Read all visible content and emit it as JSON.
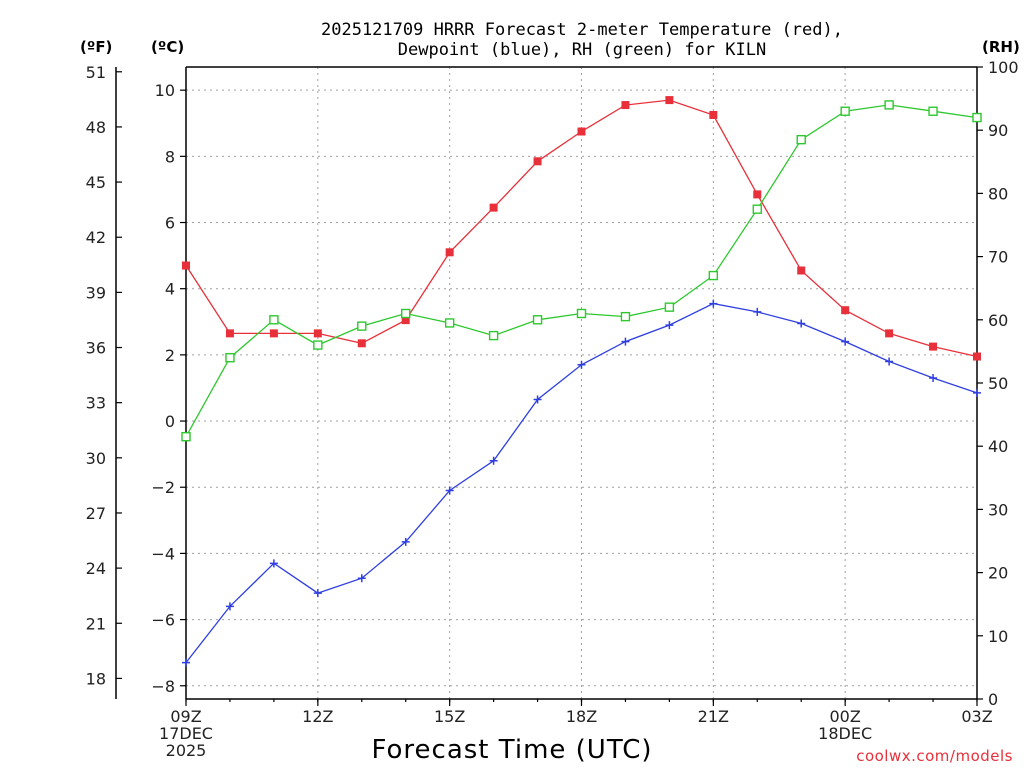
{
  "chart_data": {
    "type": "line",
    "title_line1": "2025121709 HRRR Forecast 2-meter Temperature (red),",
    "title_line2": "Dewpoint (blue), RH (green) for KILN",
    "unit_f": "(ºF)",
    "unit_c": "(ºC)",
    "unit_rh": "(RH)",
    "xlabel": "Forecast Time (UTC)",
    "credit": "coolwx.com/models",
    "x_hours": [
      0,
      1,
      2,
      3,
      4,
      5,
      6,
      7,
      8,
      9,
      10,
      11,
      12,
      13,
      14,
      15,
      16,
      17,
      18
    ],
    "x_ticks": [
      {
        "hour": 0,
        "lines": [
          "09Z",
          "17DEC",
          "2025"
        ]
      },
      {
        "hour": 3,
        "lines": [
          "12Z"
        ]
      },
      {
        "hour": 6,
        "lines": [
          "15Z"
        ]
      },
      {
        "hour": 9,
        "lines": [
          "18Z"
        ]
      },
      {
        "hour": 12,
        "lines": [
          "21Z"
        ]
      },
      {
        "hour": 15,
        "lines": [
          "00Z",
          "18DEC"
        ]
      },
      {
        "hour": 18,
        "lines": [
          "03Z"
        ]
      }
    ],
    "ylim_c": [
      -8.4,
      10.7
    ],
    "yticks_c": [
      "-8",
      "-6",
      "-4",
      "-2",
      "0",
      "2",
      "4",
      "6",
      "8",
      "10"
    ],
    "yticks_f": [
      "18",
      "21",
      "24",
      "27",
      "30",
      "33",
      "36",
      "39",
      "42",
      "45",
      "48",
      "51"
    ],
    "ylim_rh": [
      0,
      100
    ],
    "yticks_rh": [
      "0",
      "10",
      "20",
      "30",
      "40",
      "50",
      "60",
      "70",
      "80",
      "90",
      "100"
    ],
    "series": [
      {
        "name": "Temperature",
        "unit": "C",
        "color": "#e8303a",
        "marker": "filled-square",
        "values": [
          4.7,
          2.65,
          2.65,
          2.65,
          2.35,
          3.05,
          5.1,
          6.45,
          7.85,
          8.75,
          9.55,
          9.7,
          9.25,
          6.85,
          4.55,
          3.35,
          2.65,
          2.25,
          1.95
        ]
      },
      {
        "name": "Dewpoint",
        "unit": "C",
        "color": "#2f3fe0",
        "marker": "plus",
        "values": [
          -7.3,
          -5.6,
          -4.3,
          -5.2,
          -4.75,
          -3.65,
          -2.1,
          -1.2,
          0.65,
          1.7,
          2.4,
          2.9,
          3.55,
          3.3,
          2.95,
          2.4,
          1.8,
          1.3,
          0.85
        ]
      },
      {
        "name": "RH",
        "unit": "%",
        "color": "#2ec82e",
        "marker": "open-square",
        "values": [
          41.5,
          54,
          60,
          56,
          59,
          61,
          59.5,
          57.5,
          60,
          61,
          60.5,
          62,
          67,
          77.5,
          88.5,
          93,
          94,
          93,
          92
        ]
      }
    ]
  }
}
